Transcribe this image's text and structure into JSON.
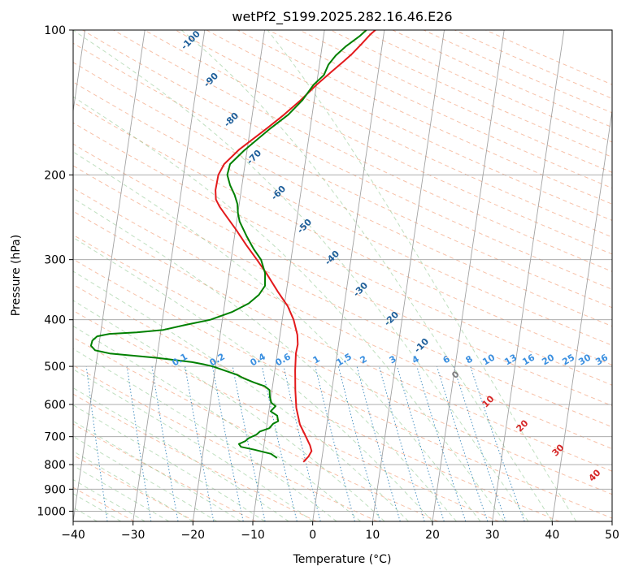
{
  "chart_data": {
    "type": "line",
    "title": "wetPf2_S199.2025.282.16.46.E26",
    "xlabel": "Temperature (°C)",
    "ylabel": "Pressure (hPa)",
    "xlim": [
      -40,
      50
    ],
    "ylim": [
      1050,
      100
    ],
    "y_scale": "log",
    "grid": true,
    "x_ticks": [
      -40,
      -30,
      -20,
      -10,
      0,
      10,
      20,
      30,
      40,
      50
    ],
    "y_ticks": [
      100,
      200,
      300,
      400,
      500,
      600,
      700,
      800,
      900,
      1000
    ],
    "series": [
      {
        "name": "",
        "role": "temperature",
        "color": "#e31a1c",
        "points": [
          [
            -3,
            790
          ],
          [
            -2.3,
            770
          ],
          [
            -1.9,
            750
          ],
          [
            -2.3,
            730
          ],
          [
            -3.2,
            700
          ],
          [
            -4.5,
            660
          ],
          [
            -5.5,
            610
          ],
          [
            -6.1,
            560
          ],
          [
            -6.6,
            510
          ],
          [
            -6.9,
            470
          ],
          [
            -6.8,
            450
          ],
          [
            -7.1,
            430
          ],
          [
            -8.1,
            400
          ],
          [
            -9.4,
            375
          ],
          [
            -11.4,
            350
          ],
          [
            -13.8,
            320
          ],
          [
            -15.7,
            300
          ],
          [
            -17.8,
            280
          ],
          [
            -19.9,
            260
          ],
          [
            -21.7,
            245
          ],
          [
            -23.2,
            233
          ],
          [
            -24.0,
            225
          ],
          [
            -24.3,
            215
          ],
          [
            -24.2,
            200
          ],
          [
            -23.5,
            190
          ],
          [
            -21.3,
            177
          ],
          [
            -17.2,
            160
          ],
          [
            -14.7,
            150
          ],
          [
            -12.3,
            140
          ],
          [
            -10.0,
            130
          ],
          [
            -7.8,
            122
          ],
          [
            -6.0,
            116
          ],
          [
            -4.8,
            112
          ],
          [
            -3.5,
            107
          ],
          [
            -2.2,
            102
          ],
          [
            -1.5,
            100
          ]
        ]
      },
      {
        "name": "",
        "role": "dewpoint",
        "color": "#008000",
        "points": [
          [
            -7.5,
            775
          ],
          [
            -8.6,
            760
          ],
          [
            -11.5,
            745
          ],
          [
            -13.8,
            735
          ],
          [
            -14.2,
            725
          ],
          [
            -13.2,
            715
          ],
          [
            -12.7,
            705
          ],
          [
            -11.5,
            693
          ],
          [
            -11.0,
            683
          ],
          [
            -9.5,
            672
          ],
          [
            -9.0,
            658
          ],
          [
            -8.2,
            650
          ],
          [
            -8.5,
            633
          ],
          [
            -9.7,
            620
          ],
          [
            -9.0,
            605
          ],
          [
            -9.8,
            595
          ],
          [
            -10.2,
            578
          ],
          [
            -10.4,
            560
          ],
          [
            -11.3,
            550
          ],
          [
            -13.2,
            540
          ],
          [
            -14.9,
            530
          ],
          [
            -16.3,
            520
          ],
          [
            -18.4,
            510
          ],
          [
            -20.5,
            500
          ],
          [
            -22.1,
            495
          ],
          [
            -24.0,
            490
          ],
          [
            -30.0,
            480
          ],
          [
            -38.0,
            470
          ],
          [
            -40.5,
            463
          ],
          [
            -41.3,
            453
          ],
          [
            -41.2,
            442
          ],
          [
            -40.5,
            433
          ],
          [
            -38.5,
            428
          ],
          [
            -34.0,
            425
          ],
          [
            -29.6,
            420
          ],
          [
            -26.0,
            410
          ],
          [
            -22.0,
            400
          ],
          [
            -18.5,
            385
          ],
          [
            -16.0,
            370
          ],
          [
            -14.5,
            355
          ],
          [
            -13.7,
            340
          ],
          [
            -14.0,
            320
          ],
          [
            -15.0,
            300
          ],
          [
            -16.5,
            285
          ],
          [
            -18.0,
            268
          ],
          [
            -19.5,
            250
          ],
          [
            -20.0,
            240
          ],
          [
            -20.3,
            230
          ],
          [
            -21.0,
            220
          ],
          [
            -22.0,
            210
          ],
          [
            -22.7,
            200
          ],
          [
            -22.5,
            190
          ],
          [
            -20.5,
            178
          ],
          [
            -16.6,
            160
          ],
          [
            -14.0,
            150
          ],
          [
            -12.0,
            140
          ],
          [
            -10.5,
            130
          ],
          [
            -9.0,
            124
          ],
          [
            -8.5,
            118
          ],
          [
            -7.5,
            113
          ],
          [
            -6.0,
            108
          ],
          [
            -4.0,
            103
          ],
          [
            -3.0,
            100
          ]
        ]
      }
    ],
    "dry_adiabat_labels": [
      "-100",
      "-90",
      "-80",
      "-70",
      "-60",
      "-50",
      "-40",
      "-30",
      "-20",
      "-10"
    ],
    "mixing_ratio_labels": [
      "0.1",
      "0.2",
      "0.4",
      "0.6",
      "1",
      "1.5",
      "2",
      "3",
      "4",
      "6",
      "8",
      "10",
      "13",
      "16",
      "20",
      "25",
      "30",
      "36"
    ],
    "moist_adiabat_labels": [
      "0",
      "10",
      "20",
      "30",
      "40"
    ]
  }
}
